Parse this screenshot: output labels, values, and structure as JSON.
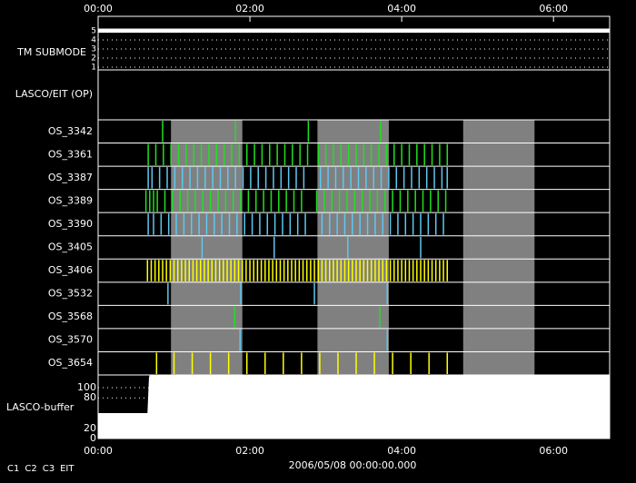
{
  "chart_data": {
    "type": "timeline",
    "xlim": [
      0,
      6.74
    ],
    "xticks": [
      {
        "value": 0,
        "label": "00:00"
      },
      {
        "value": 2,
        "label": "02:00"
      },
      {
        "value": 4,
        "label": "04:00"
      },
      {
        "value": 6,
        "label": "06:00"
      }
    ],
    "date": "2006/05/08 00:00:00.000",
    "legend": [
      {
        "name": "C1",
        "color": "#ff2020"
      },
      {
        "name": "C2",
        "color": "#20ff20"
      },
      {
        "name": "C3",
        "color": "#ffffff"
      },
      {
        "name": "EIT",
        "color": "#ffffff"
      }
    ],
    "shaded": [
      [
        0.96,
        1.9
      ],
      [
        2.89,
        3.83
      ],
      [
        4.81,
        5.75
      ]
    ],
    "tm_submode": {
      "label": "TM SUBMODE",
      "ylim": [
        0.7,
        5.2
      ],
      "yticks": [
        1,
        2,
        3,
        4,
        5
      ],
      "x": [
        0,
        6.74
      ],
      "values": [
        5,
        5
      ]
    },
    "op_label": "LASCO/EIT (OP)",
    "rows": [
      {
        "name": "OS_3342",
        "color": "#20e020",
        "events": [
          0.85,
          1.81,
          2.77,
          3.72
        ]
      },
      {
        "name": "OS_3361",
        "color": "#20e020",
        "events": [
          0.66,
          0.76,
          0.86,
          0.96,
          1.06,
          1.16,
          1.26,
          1.36,
          1.46,
          1.56,
          1.66,
          1.76,
          1.86,
          1.96,
          2.06,
          2.16,
          2.26,
          2.36,
          2.46,
          2.56,
          2.66,
          2.76,
          2.9,
          3.0,
          3.1,
          3.2,
          3.3,
          3.4,
          3.5,
          3.6,
          3.7,
          3.8,
          3.9,
          4.0,
          4.1,
          4.2,
          4.3,
          4.4,
          4.5,
          4.6
        ]
      },
      {
        "name": "OS_3387",
        "color": "#5ec8f0",
        "events": [
          0.66,
          0.71,
          0.81,
          0.91,
          1.01,
          1.11,
          1.21,
          1.31,
          1.41,
          1.51,
          1.61,
          1.71,
          1.81,
          1.91,
          2.01,
          2.11,
          2.21,
          2.31,
          2.41,
          2.51,
          2.61,
          2.71,
          2.93,
          3.03,
          3.13,
          3.23,
          3.33,
          3.43,
          3.53,
          3.63,
          3.73,
          3.83,
          3.93,
          4.03,
          4.13,
          4.23,
          4.33,
          4.43,
          4.53,
          4.6
        ]
      },
      {
        "name": "OS_3389",
        "color": "#20e020",
        "events": [
          0.63,
          0.68,
          0.73,
          0.78,
          0.88,
          0.98,
          1.08,
          1.18,
          1.28,
          1.38,
          1.48,
          1.58,
          1.68,
          1.78,
          1.88,
          1.98,
          2.08,
          2.18,
          2.28,
          2.38,
          2.48,
          2.58,
          2.68,
          2.88,
          2.98,
          3.08,
          3.18,
          3.28,
          3.38,
          3.48,
          3.58,
          3.68,
          3.78,
          3.88,
          3.98,
          4.08,
          4.18,
          4.28,
          4.38,
          4.48,
          4.58
        ]
      },
      {
        "name": "OS_3390",
        "color": "#5ec8f0",
        "events": [
          0.66,
          0.73,
          0.83,
          0.93,
          1.03,
          1.13,
          1.23,
          1.33,
          1.43,
          1.53,
          1.63,
          1.73,
          1.83,
          1.93,
          2.03,
          2.13,
          2.23,
          2.33,
          2.43,
          2.53,
          2.63,
          2.73,
          2.95,
          3.05,
          3.15,
          3.25,
          3.35,
          3.45,
          3.55,
          3.65,
          3.75,
          3.85,
          3.95,
          4.05,
          4.15,
          4.25,
          4.35,
          4.45,
          4.55
        ]
      },
      {
        "name": "OS_3405",
        "color": "#5ec8f0",
        "events": [
          1.37,
          2.32,
          3.29,
          4.25
        ]
      },
      {
        "name": "OS_3406",
        "color": "#ffff00",
        "events": [
          0.65,
          0.7,
          0.75,
          0.8,
          0.85,
          0.9,
          0.95,
          1.0,
          1.05,
          1.1,
          1.15,
          1.2,
          1.25,
          1.3,
          1.35,
          1.4,
          1.45,
          1.5,
          1.55,
          1.6,
          1.65,
          1.7,
          1.75,
          1.8,
          1.85,
          1.9,
          1.95,
          2.0,
          2.05,
          2.1,
          2.15,
          2.2,
          2.25,
          2.3,
          2.35,
          2.4,
          2.45,
          2.5,
          2.55,
          2.6,
          2.65,
          2.7,
          2.75,
          2.8,
          2.85,
          2.9,
          2.95,
          3.0,
          3.05,
          3.1,
          3.15,
          3.2,
          3.25,
          3.3,
          3.35,
          3.4,
          3.45,
          3.5,
          3.55,
          3.6,
          3.65,
          3.7,
          3.75,
          3.8,
          3.85,
          3.9,
          3.95,
          4.0,
          4.05,
          4.1,
          4.15,
          4.2,
          4.25,
          4.3,
          4.35,
          4.4,
          4.45,
          4.5,
          4.55,
          4.6
        ]
      },
      {
        "name": "OS_3532",
        "color": "#5ec8f0",
        "events": [
          0.92,
          1.88,
          2.85,
          3.81
        ]
      },
      {
        "name": "OS_3568",
        "color": "#20e020",
        "events": [
          1.8,
          3.71
        ]
      },
      {
        "name": "OS_3570",
        "color": "#5ec8f0",
        "events": [
          1.87,
          3.81
        ]
      },
      {
        "name": "OS_3654",
        "color": "#ffff00",
        "events": [
          0.77,
          1.0,
          1.24,
          1.48,
          1.72,
          1.96,
          2.2,
          2.44,
          2.68,
          2.92,
          3.16,
          3.4,
          3.64,
          3.88,
          4.12,
          4.36,
          4.6
        ]
      }
    ],
    "buffer": {
      "label": "LASCO-buffer",
      "ylim": [
        0,
        125
      ],
      "yticks": [
        0,
        20,
        80,
        100
      ],
      "x": [
        0,
        0.65,
        0.67,
        0.68,
        6.74
      ],
      "values": [
        50,
        50,
        120,
        125,
        125
      ]
    }
  }
}
